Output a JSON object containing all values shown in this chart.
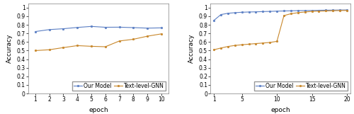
{
  "left": {
    "xlabel": "epoch",
    "ylabel": "Accuracy",
    "xlim": [
      0.5,
      10.5
    ],
    "ylim": [
      0,
      1.05
    ],
    "xticks": [
      1,
      2,
      3,
      4,
      5,
      6,
      7,
      8,
      9,
      10
    ],
    "yticks": [
      0,
      0.1,
      0.2,
      0.3,
      0.4,
      0.5,
      0.6,
      0.7,
      0.8,
      0.9,
      1.0
    ],
    "ytick_labels": [
      "0",
      "0.1",
      "0.2",
      "0.3",
      "0.4",
      "0.5",
      "0.6",
      "0.7",
      "0.8",
      "0.9",
      "1"
    ],
    "our_model_x": [
      1,
      2,
      3,
      4,
      5,
      6,
      7,
      8,
      9,
      10
    ],
    "our_model_y": [
      0.722,
      0.745,
      0.755,
      0.77,
      0.782,
      0.772,
      0.773,
      0.768,
      0.762,
      0.765
    ],
    "gnn_x": [
      1,
      2,
      3,
      4,
      5,
      6,
      7,
      8,
      9,
      10
    ],
    "gnn_y": [
      0.5,
      0.51,
      0.535,
      0.558,
      0.55,
      0.545,
      0.612,
      0.632,
      0.668,
      0.695
    ]
  },
  "right": {
    "xlabel": "epoch",
    "ylabel": "Accuracy",
    "xlim": [
      0.5,
      20.5
    ],
    "ylim": [
      0,
      1.05
    ],
    "xticks": [
      1,
      5,
      10,
      15,
      20
    ],
    "yticks": [
      0,
      0.1,
      0.2,
      0.3,
      0.4,
      0.5,
      0.6,
      0.7,
      0.8,
      0.9,
      1.0
    ],
    "ytick_labels": [
      "0",
      "0.1",
      "0.2",
      "0.3",
      "0.4",
      "0.5",
      "0.6",
      "0.7",
      "0.8",
      "0.9",
      "1"
    ],
    "our_model_x": [
      1,
      2,
      3,
      4,
      5,
      6,
      7,
      8,
      9,
      10,
      11,
      12,
      13,
      14,
      15,
      16,
      17,
      18,
      19,
      20
    ],
    "our_model_y": [
      0.852,
      0.92,
      0.935,
      0.942,
      0.947,
      0.95,
      0.952,
      0.955,
      0.957,
      0.96,
      0.962,
      0.964,
      0.966,
      0.967,
      0.968,
      0.97,
      0.971,
      0.972,
      0.973,
      0.974
    ],
    "gnn_x": [
      1,
      2,
      3,
      4,
      5,
      6,
      7,
      8,
      9,
      10,
      11,
      12,
      13,
      14,
      15,
      16,
      17,
      18,
      19,
      20
    ],
    "gnn_y": [
      0.51,
      0.53,
      0.548,
      0.56,
      0.568,
      0.575,
      0.582,
      0.588,
      0.595,
      0.608,
      0.908,
      0.93,
      0.942,
      0.95,
      0.957,
      0.96,
      0.962,
      0.965,
      0.967,
      0.968
    ]
  },
  "our_model_color": "#5b7fc4",
  "gnn_color": "#c8872a",
  "line_width": 0.8,
  "marker_size": 2.0,
  "marker_style": "o",
  "legend_fontsize": 5.5,
  "axis_label_fontsize": 6.5,
  "tick_fontsize": 5.5,
  "legend_label_our": "Our Model",
  "legend_label_gnn": "Text-level-GNN"
}
